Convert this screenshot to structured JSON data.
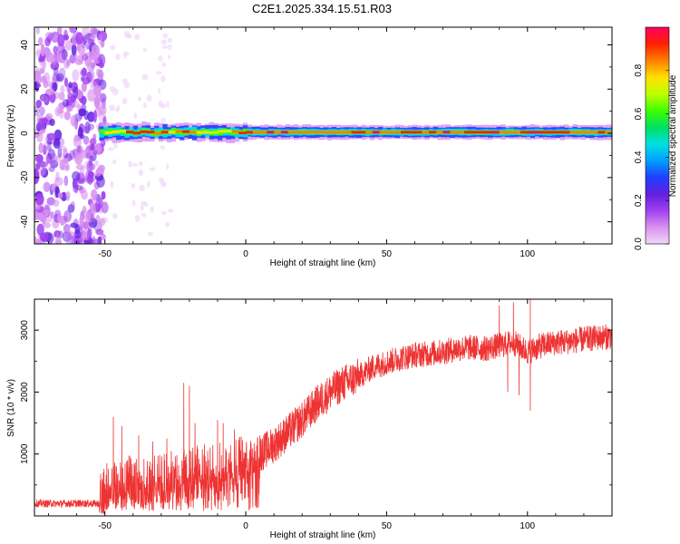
{
  "figure": {
    "title": "C2E1.2025.334.15.51.R03"
  },
  "chart_data": [
    {
      "type": "heatmap",
      "title": "",
      "xlabel": "Height of straight line (km)",
      "ylabel": "Frequency (Hz)",
      "xlim": [
        -75,
        130
      ],
      "ylim": [
        -50,
        48
      ],
      "x_ticks": [
        -50,
        0,
        50,
        100
      ],
      "y_ticks": [
        -40,
        -20,
        0,
        20,
        40
      ],
      "x_tick_labels": [
        "-50",
        "0",
        "50",
        "100"
      ],
      "y_tick_labels": [
        "-40",
        "-20",
        "0",
        "20",
        "40"
      ],
      "noise_region_x": [
        -75,
        -50
      ],
      "signal_center_hz": 0.5,
      "signal_onset_km": -52,
      "colorbar": {
        "label": "Normalized spectral amplitude",
        "range": [
          0.0,
          1.0
        ],
        "ticks": [
          0.0,
          0.2,
          0.4,
          0.6,
          0.8
        ],
        "tick_labels": [
          "0.0",
          "0.2",
          "0.4",
          "0.6",
          "0.8"
        ],
        "colors": [
          "#f0d8f8",
          "#d890f0",
          "#a040f0",
          "#6020e0",
          "#2040ff",
          "#00a0ff",
          "#00e0e0",
          "#00e060",
          "#40ff00",
          "#c0ff00",
          "#ffe000",
          "#ff8000",
          "#ff2000",
          "#ff0060"
        ]
      },
      "grid": false
    },
    {
      "type": "line",
      "title": "",
      "xlabel": "Height of straight line (km)",
      "ylabel": "SNR (10 * v/v)",
      "xlim": [
        -75,
        130
      ],
      "ylim": [
        0,
        3500
      ],
      "x_ticks": [
        -50,
        0,
        50,
        100
      ],
      "y_ticks": [
        1000,
        2000,
        3000
      ],
      "x_tick_labels": [
        "-50",
        "0",
        "50",
        "100"
      ],
      "y_tick_labels": [
        "1000",
        "2000",
        "3000"
      ],
      "color": "#ee3333",
      "trend": {
        "x": [
          -75,
          -60,
          -52,
          -50,
          -45,
          -40,
          -35,
          -30,
          -25,
          -20,
          -15,
          -10,
          -5,
          0,
          5,
          10,
          15,
          20,
          25,
          30,
          35,
          40,
          45,
          50,
          55,
          60,
          65,
          70,
          75,
          80,
          85,
          90,
          95,
          100,
          105,
          110,
          115,
          120,
          125,
          130
        ],
        "y": [
          200,
          200,
          200,
          450,
          600,
          560,
          550,
          600,
          640,
          700,
          760,
          780,
          840,
          900,
          1000,
          1150,
          1350,
          1550,
          1800,
          2000,
          2150,
          2250,
          2400,
          2480,
          2550,
          2600,
          2620,
          2650,
          2700,
          2720,
          2700,
          2750,
          2800,
          2650,
          2750,
          2800,
          2820,
          2850,
          2880,
          2900
        ]
      },
      "spikes": [
        {
          "x": -47,
          "y": 1600
        },
        {
          "x": -44,
          "y": 1450
        },
        {
          "x": -38,
          "y": 1300
        },
        {
          "x": -33,
          "y": 1200
        },
        {
          "x": -28,
          "y": 1250
        },
        {
          "x": -22,
          "y": 2150
        },
        {
          "x": -20,
          "y": 2100
        },
        {
          "x": -18,
          "y": 1500
        },
        {
          "x": -10,
          "y": 1550
        },
        {
          "x": -8,
          "y": 1500
        },
        {
          "x": -4,
          "y": 1400
        },
        {
          "x": 5,
          "y": 1300
        },
        {
          "x": 90,
          "y": 3400
        },
        {
          "x": 95,
          "y": 3450
        },
        {
          "x": 101,
          "y": 3500
        }
      ],
      "dips": [
        {
          "x": 93,
          "y": 2000
        },
        {
          "x": 97,
          "y": 1950
        },
        {
          "x": 101,
          "y": 1700
        }
      ],
      "grid": false
    }
  ]
}
